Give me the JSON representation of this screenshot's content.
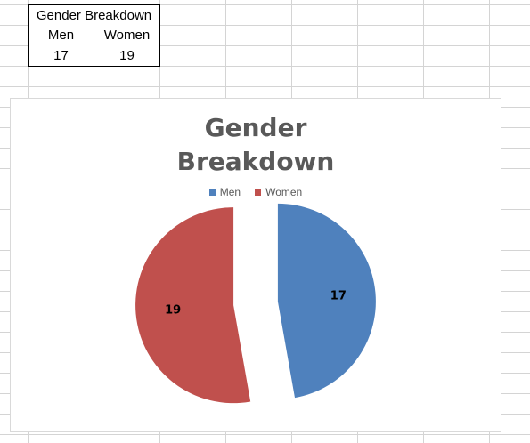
{
  "table": {
    "title": "Gender Breakdown",
    "headers": [
      "Men",
      "Women"
    ],
    "values": [
      "17",
      "19"
    ]
  },
  "chart_data": {
    "type": "pie",
    "title_lines": [
      "Gender",
      "Breakdown"
    ],
    "categories": [
      "Men",
      "Women"
    ],
    "values": [
      17,
      19
    ],
    "colors": [
      "#4f81bd",
      "#c0504d"
    ],
    "exploded": true,
    "data_labels": [
      "17",
      "19"
    ],
    "legend": "top"
  }
}
